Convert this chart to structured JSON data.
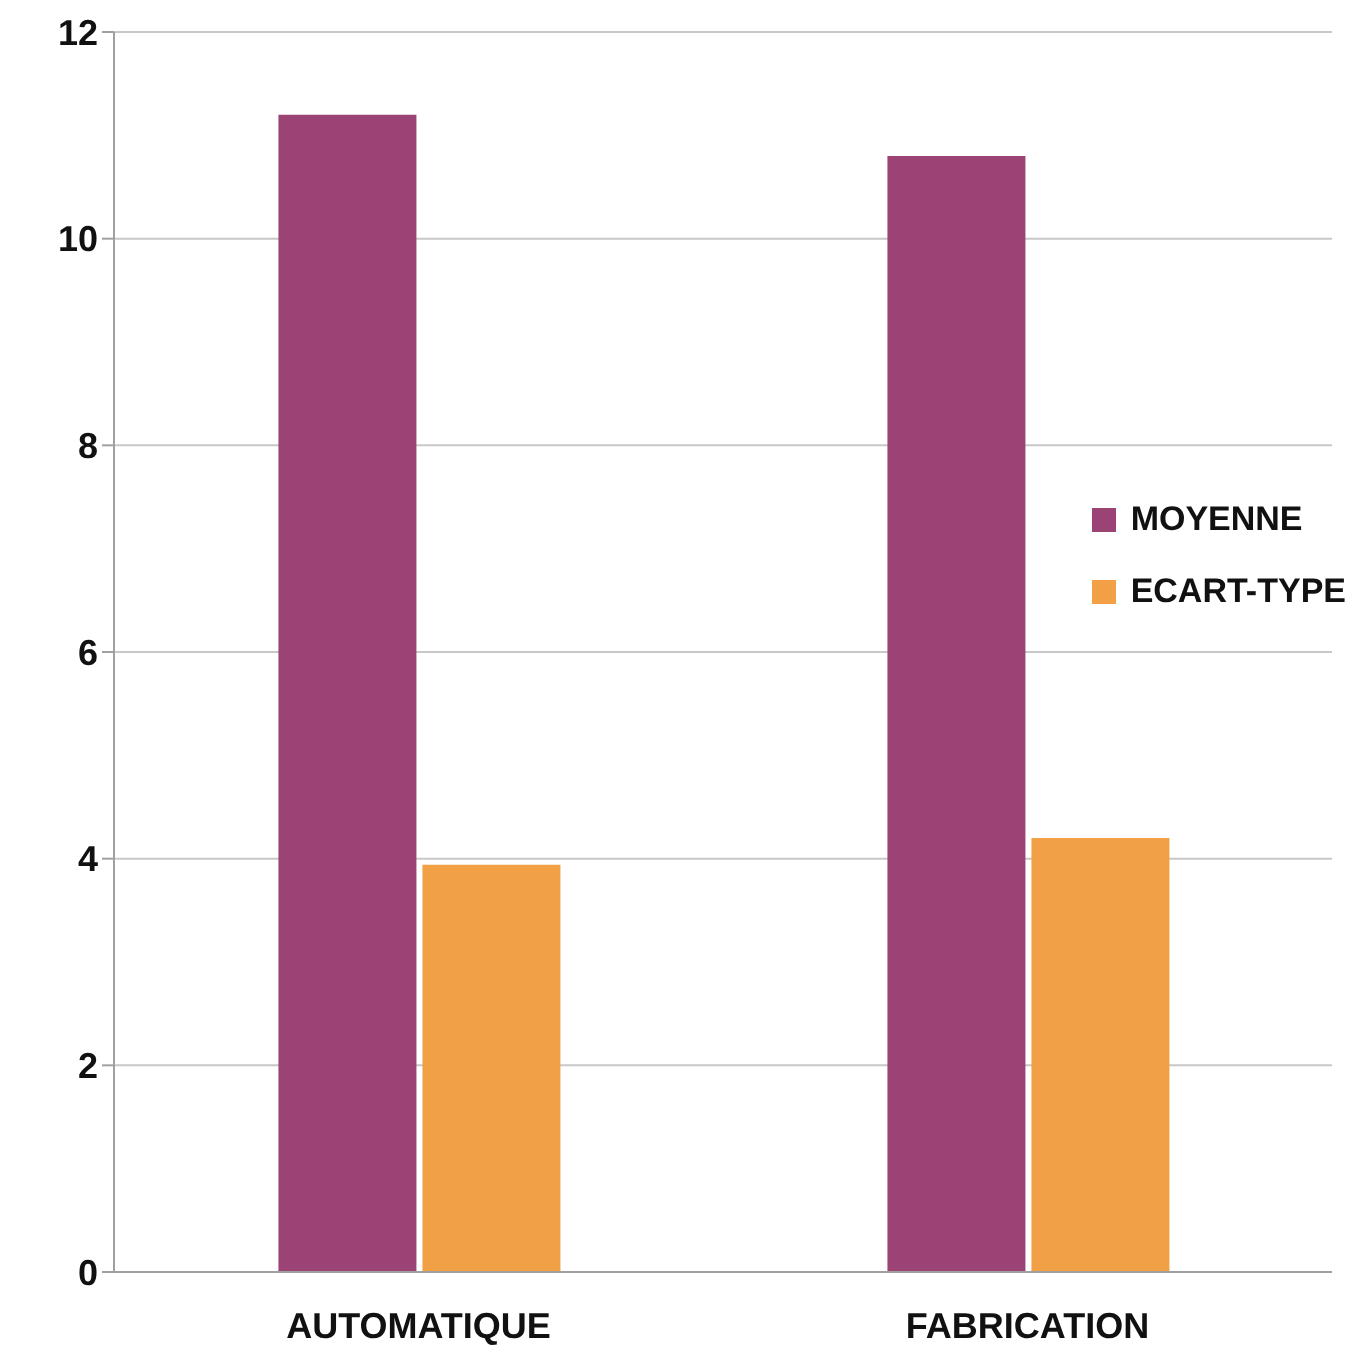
{
  "chart_data": {
    "type": "bar",
    "categories": [
      "AUTOMATIQUE",
      "FABRICATION"
    ],
    "series": [
      {
        "name": "MOYENNE",
        "color": "#9b4374",
        "values": [
          11.2,
          10.8
        ]
      },
      {
        "name": "ECART-TYPE",
        "color": "#f2a045",
        "values": [
          3.94,
          4.2
        ]
      }
    ],
    "ylim": [
      0,
      12
    ],
    "yticks": [
      0,
      2,
      4,
      6,
      8,
      10,
      12
    ],
    "grid": "y",
    "legend": "right"
  }
}
